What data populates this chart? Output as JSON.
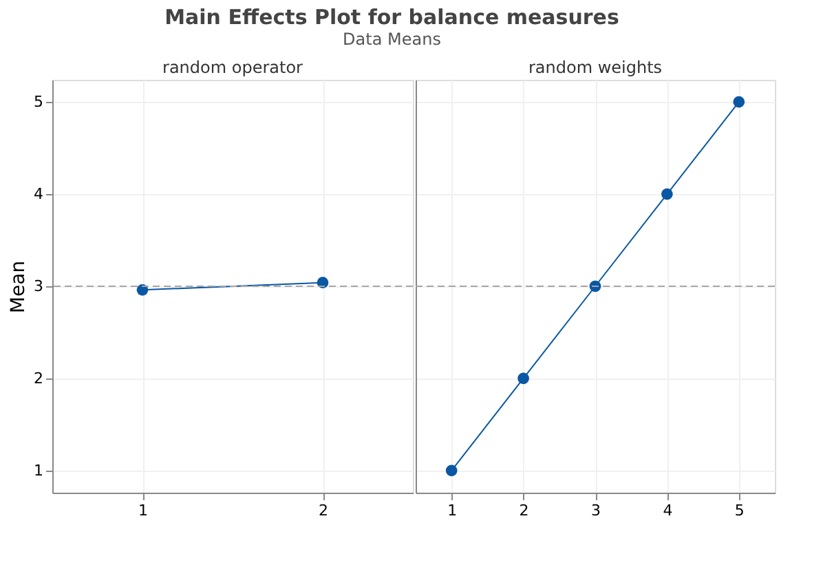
{
  "chart_data": [
    {
      "type": "line",
      "title": "random operator",
      "annotations": [
        "Main Effects Plot for balance measures",
        "Data Means"
      ],
      "ylabel": "Mean",
      "categories": [
        "1",
        "2"
      ],
      "series": [
        {
          "color": "#0a57a4",
          "values": [
            2.96,
            3.04
          ]
        }
      ],
      "ylim": [
        0.76,
        5.24
      ],
      "yticks": [
        1,
        2,
        3,
        4,
        5
      ],
      "grid": true,
      "marker": "circle",
      "line_style": "solid",
      "ref_lines": [
        {
          "axis": "y",
          "value": 3,
          "color": "#a6a6a6",
          "line_style": "dashed"
        }
      ]
    },
    {
      "type": "line",
      "title": "random weights",
      "categories": [
        "1",
        "2",
        "3",
        "4",
        "5"
      ],
      "series": [
        {
          "color": "#0a57a4",
          "values": [
            1,
            2,
            3,
            4,
            5
          ]
        }
      ],
      "ylim": [
        0.76,
        5.24
      ],
      "yticks": [
        1,
        2,
        3,
        4,
        5
      ],
      "grid": true,
      "marker": "circle",
      "line_style": "solid",
      "tick_labels": "x",
      "ref_lines": [
        {
          "axis": "y",
          "value": 3,
          "color": "#a6a6a6",
          "line_style": "dashed"
        }
      ]
    }
  ]
}
